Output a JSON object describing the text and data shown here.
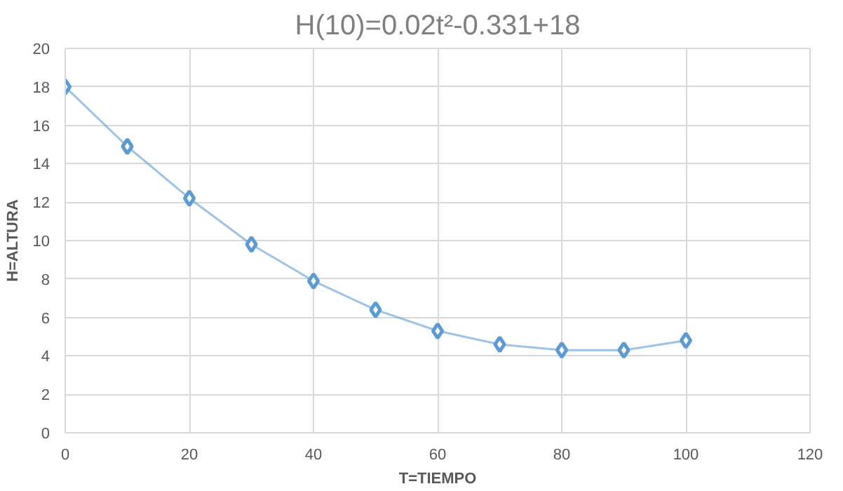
{
  "chart_data": {
    "type": "line",
    "title": "H(10)=0.02t²-0.331+18",
    "xlabel": "T=TIEMPO",
    "ylabel": "H=ALTURA",
    "x": [
      0,
      10,
      20,
      30,
      40,
      50,
      60,
      70,
      80,
      90,
      100
    ],
    "series": [
      {
        "color": "#5b9bd5",
        "values": [
          18,
          14.9,
          12.2,
          9.8,
          7.9,
          6.4,
          5.3,
          4.6,
          4.3,
          4.3,
          4.8
        ]
      }
    ],
    "xlim": [
      0,
      120
    ],
    "xticks": [
      0,
      20,
      40,
      60,
      80,
      100,
      120
    ],
    "ylim": [
      0,
      20
    ],
    "yticks": [
      0,
      2,
      4,
      6,
      8,
      10,
      12,
      14,
      16,
      18,
      20
    ],
    "grid": true,
    "marker": "diamond",
    "line_style": "solid"
  }
}
